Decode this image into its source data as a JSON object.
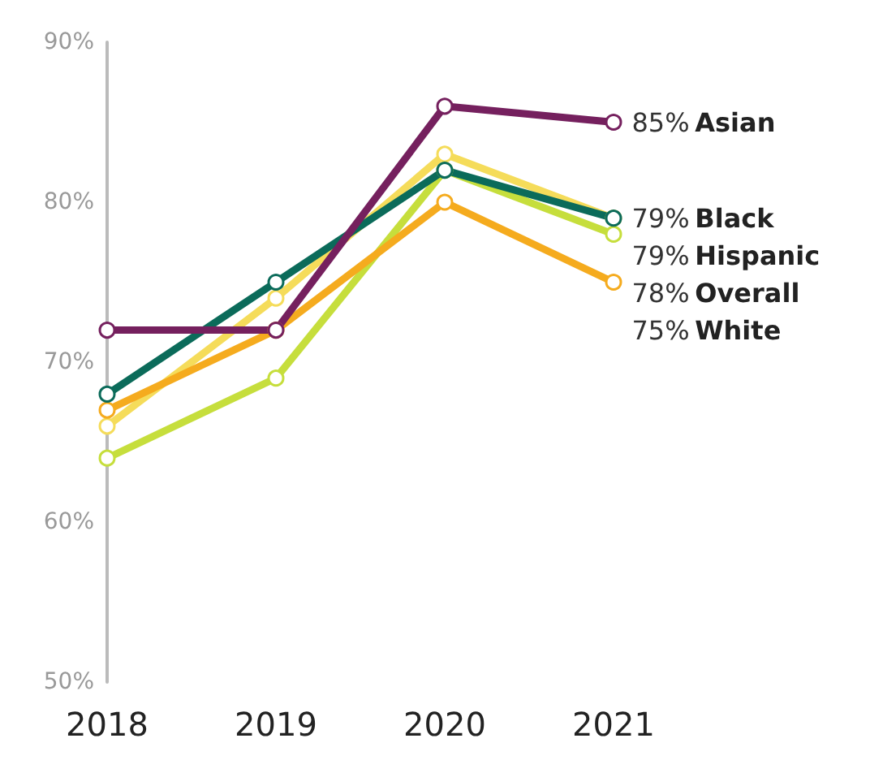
{
  "chart_data": {
    "type": "line",
    "categories": [
      "2018",
      "2019",
      "2020",
      "2021"
    ],
    "series": [
      {
        "name": "Black",
        "color": "#f5dc5a",
        "values": [
          66,
          74,
          83,
          79
        ],
        "value_labels": [
          null,
          null,
          null,
          "79%"
        ]
      },
      {
        "name": "Overall",
        "color": "#c6de3c",
        "values": [
          64,
          69,
          82,
          78
        ],
        "value_labels": [
          null,
          null,
          null,
          "78%"
        ]
      },
      {
        "name": "White",
        "color": "#f5ab1e",
        "values": [
          67,
          72,
          80,
          75
        ],
        "value_labels": [
          null,
          null,
          null,
          "75%"
        ]
      },
      {
        "name": "Hispanic",
        "color": "#0b6b5a",
        "values": [
          68,
          75,
          82,
          79
        ],
        "value_labels": [
          null,
          null,
          null,
          "79%"
        ]
      },
      {
        "name": "Asian",
        "color": "#75205e",
        "values": [
          72,
          72,
          86,
          85
        ],
        "value_labels": [
          null,
          null,
          null,
          "85%"
        ]
      }
    ],
    "ylim": [
      50,
      90
    ],
    "yticks": [
      {
        "value": 50,
        "label": "50%"
      },
      {
        "value": 60,
        "label": "60%"
      },
      {
        "value": 70,
        "label": "70%"
      },
      {
        "value": 80,
        "label": "80%"
      },
      {
        "value": 90,
        "label": "90%"
      }
    ],
    "grid": false,
    "legend": false,
    "marker": "circle",
    "line_style": "solid"
  }
}
